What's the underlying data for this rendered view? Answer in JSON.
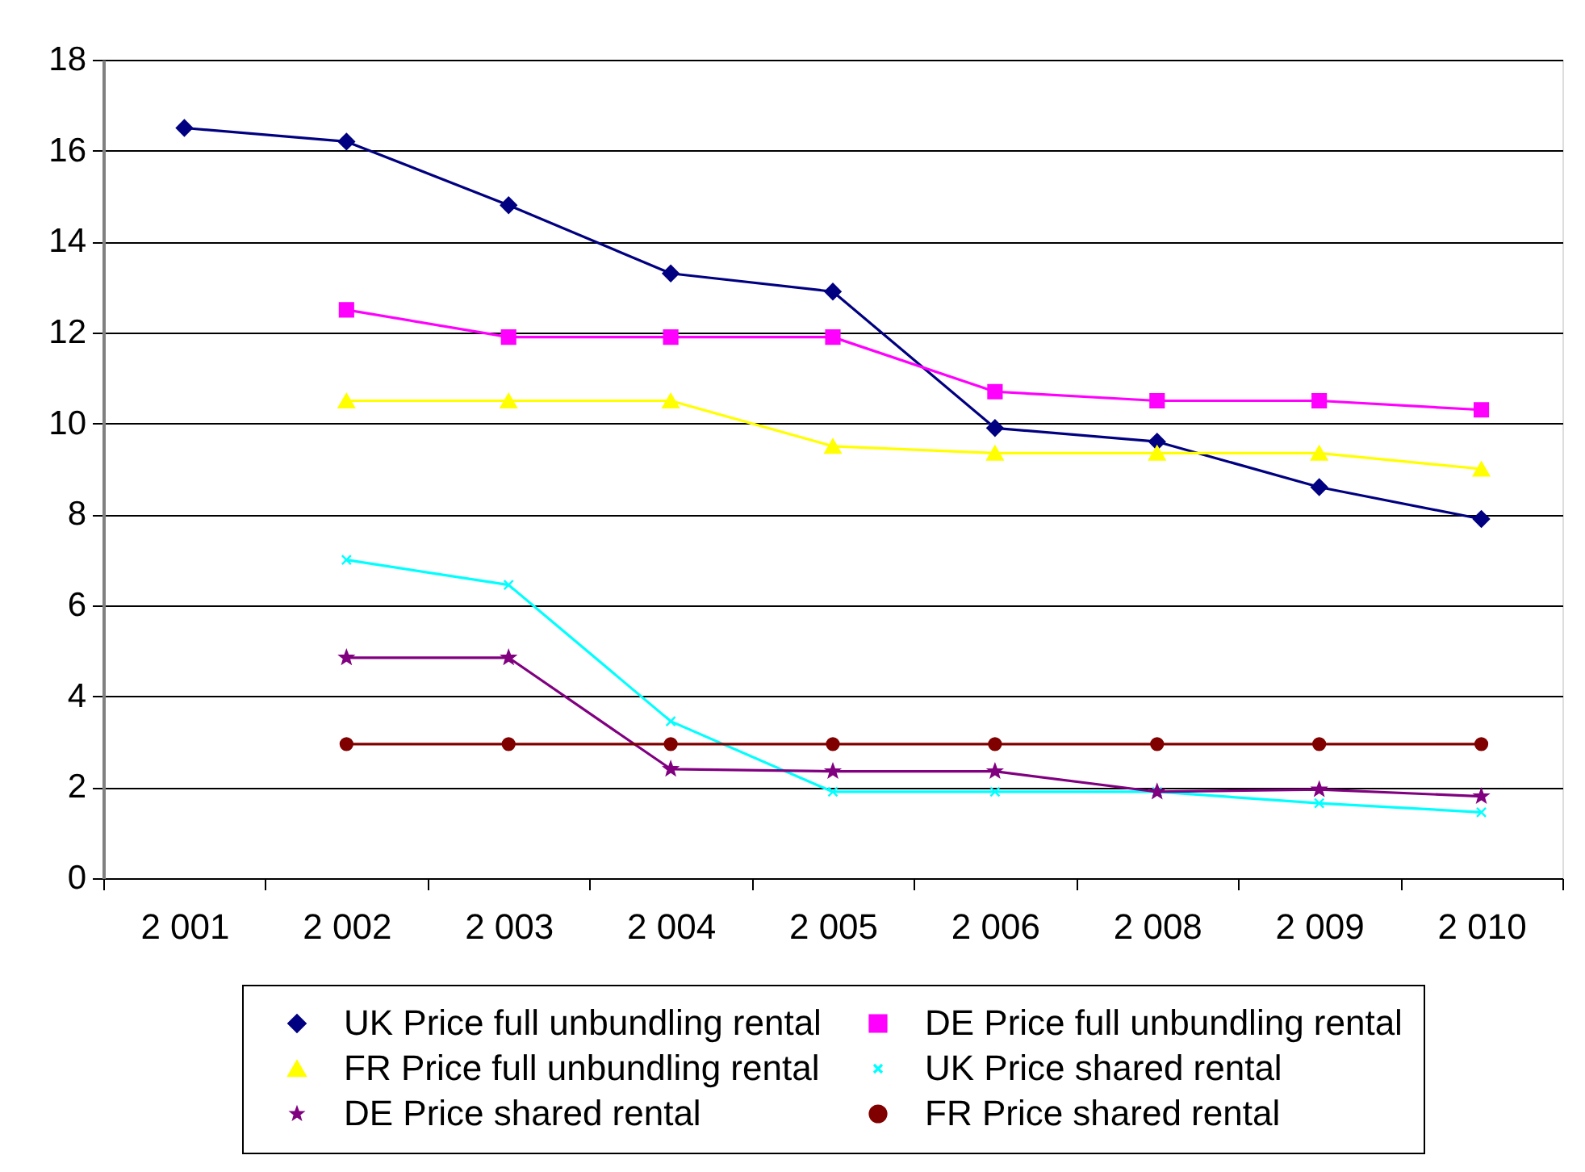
{
  "chart_data": {
    "type": "line",
    "categories": [
      "2 001",
      "2 002",
      "2 003",
      "2 004",
      "2 005",
      "2 006",
      "2 008",
      "2 009",
      "2 010"
    ],
    "series": [
      {
        "name": "UK Price full unbundling rental",
        "color": "#000080",
        "marker": "diamond",
        "values": [
          16.5,
          16.2,
          14.8,
          13.3,
          12.9,
          9.9,
          9.6,
          8.6,
          7.9
        ]
      },
      {
        "name": "DE Price full unbundling rental",
        "color": "#ff00ff",
        "marker": "square",
        "values": [
          null,
          12.5,
          11.9,
          11.9,
          11.9,
          10.7,
          10.5,
          10.5,
          10.3
        ]
      },
      {
        "name": "FR Price full unbundling rental",
        "color": "#ffff00",
        "marker": "triangle",
        "values": [
          null,
          10.5,
          10.5,
          10.5,
          9.5,
          9.35,
          9.35,
          9.35,
          9.0
        ]
      },
      {
        "name": "UK Price shared rental",
        "color": "#00ffff",
        "marker": "cross",
        "values": [
          null,
          7.0,
          6.45,
          3.45,
          1.9,
          1.9,
          1.9,
          1.65,
          1.45
        ]
      },
      {
        "name": "DE Price shared rental",
        "color": "#800080",
        "marker": "star",
        "values": [
          null,
          4.85,
          4.85,
          2.4,
          2.35,
          2.35,
          1.9,
          1.95,
          1.8
        ]
      },
      {
        "name": "FR Price shared rental",
        "color": "#800000",
        "marker": "circle",
        "values": [
          null,
          2.95,
          2.95,
          2.95,
          2.95,
          2.95,
          2.95,
          2.95,
          2.95
        ]
      }
    ],
    "ylim": [
      0,
      18
    ],
    "yticks": [
      0,
      2,
      4,
      6,
      8,
      10,
      12,
      14,
      16,
      18
    ],
    "grid": "y",
    "legend": "bottom",
    "line_style": "solid"
  }
}
